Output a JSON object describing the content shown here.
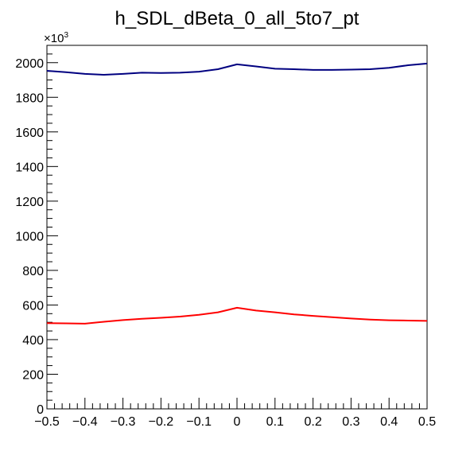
{
  "chart_data": {
    "type": "line",
    "title": "h_SDL_dBeta_0_all_5to7_pt",
    "xlabel": "",
    "ylabel": "",
    "xlim": [
      -0.5,
      0.5
    ],
    "ylim": [
      0,
      2100
    ],
    "y_multiplier_label": "×10",
    "y_multiplier_exponent": "3",
    "x_ticks": [
      -0.5,
      -0.4,
      -0.3,
      -0.2,
      -0.1,
      0,
      0.1,
      0.2,
      0.3,
      0.4,
      0.5
    ],
    "x_tick_labels": [
      "−0.5",
      "−0.4",
      "−0.3",
      "−0.2",
      "−0.1",
      "0",
      "0.1",
      "0.2",
      "0.3",
      "0.4",
      "0.5"
    ],
    "y_ticks": [
      0,
      200,
      400,
      600,
      800,
      1000,
      1200,
      1400,
      1600,
      1800,
      2000
    ],
    "y_tick_labels": [
      "0",
      "200",
      "400",
      "600",
      "800",
      "1000",
      "1200",
      "1400",
      "1600",
      "1800",
      "2000"
    ],
    "grid": false,
    "legend": "none",
    "series": [
      {
        "color": "#000080",
        "x": [
          -0.5,
          -0.45,
          -0.4,
          -0.35,
          -0.3,
          -0.25,
          -0.2,
          -0.15,
          -0.1,
          -0.05,
          0,
          0.05,
          0.1,
          0.15,
          0.2,
          0.25,
          0.3,
          0.35,
          0.4,
          0.45,
          0.5
        ],
        "values": [
          1953,
          1945,
          1935,
          1930,
          1935,
          1942,
          1940,
          1942,
          1948,
          1962,
          1990,
          1978,
          1965,
          1962,
          1958,
          1958,
          1960,
          1962,
          1970,
          1985,
          1995
        ]
      },
      {
        "color": "#ff0000",
        "x": [
          -0.5,
          -0.45,
          -0.4,
          -0.35,
          -0.3,
          -0.25,
          -0.2,
          -0.15,
          -0.1,
          -0.05,
          0,
          0.05,
          0.1,
          0.15,
          0.2,
          0.25,
          0.3,
          0.35,
          0.4,
          0.45,
          0.5
        ],
        "values": [
          495,
          494,
          492,
          503,
          513,
          520,
          526,
          533,
          543,
          558,
          584,
          568,
          558,
          546,
          537,
          530,
          522,
          516,
          512,
          510,
          508
        ]
      }
    ]
  }
}
